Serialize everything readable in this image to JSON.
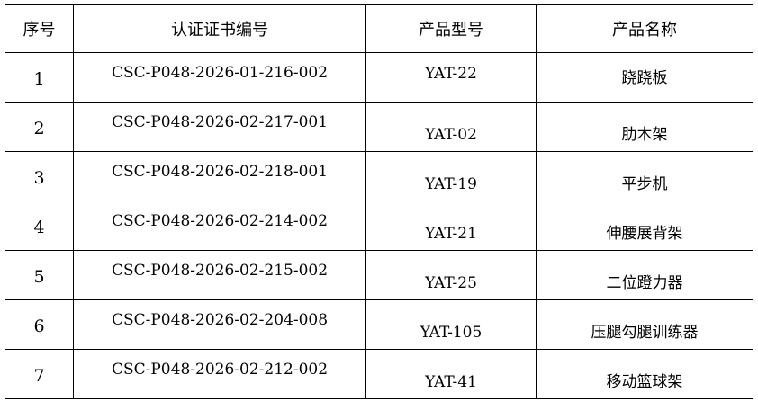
{
  "headers": [
    "序号",
    "认证证书编号",
    "产品型号",
    "产品名称"
  ],
  "rows": [
    {
      "no": "1",
      "cert": "CSC-P048-2026-01-216-002",
      "model": "YAT-22",
      "name": "跷跷板"
    },
    {
      "no": "2",
      "cert": "CSC-P048-2026-02-217-001",
      "model": "YAT-02",
      "name": "肋木架"
    },
    {
      "no": "3",
      "cert": "CSC-P048-2026-02-218-001",
      "model": "YAT-19",
      "name": "平步机"
    },
    {
      "no": "4",
      "cert": "CSC-P048-2026-02-214-002",
      "model": "YAT-21",
      "name": "伸腰展背架"
    },
    {
      "no": "5",
      "cert": "CSC-P048-2026-02-215-002",
      "model": "YAT-25",
      "name": "二位蹬力器"
    },
    {
      "no": "6",
      "cert": "CSC-P048-2026-02-204-008",
      "model": "YAT-105",
      "name": "压腿勾腿训练器"
    },
    {
      "no": "7",
      "cert": "CSC-P048-2026-02-212-002",
      "model": "YAT-41",
      "name": "移动篮球架"
    }
  ]
}
